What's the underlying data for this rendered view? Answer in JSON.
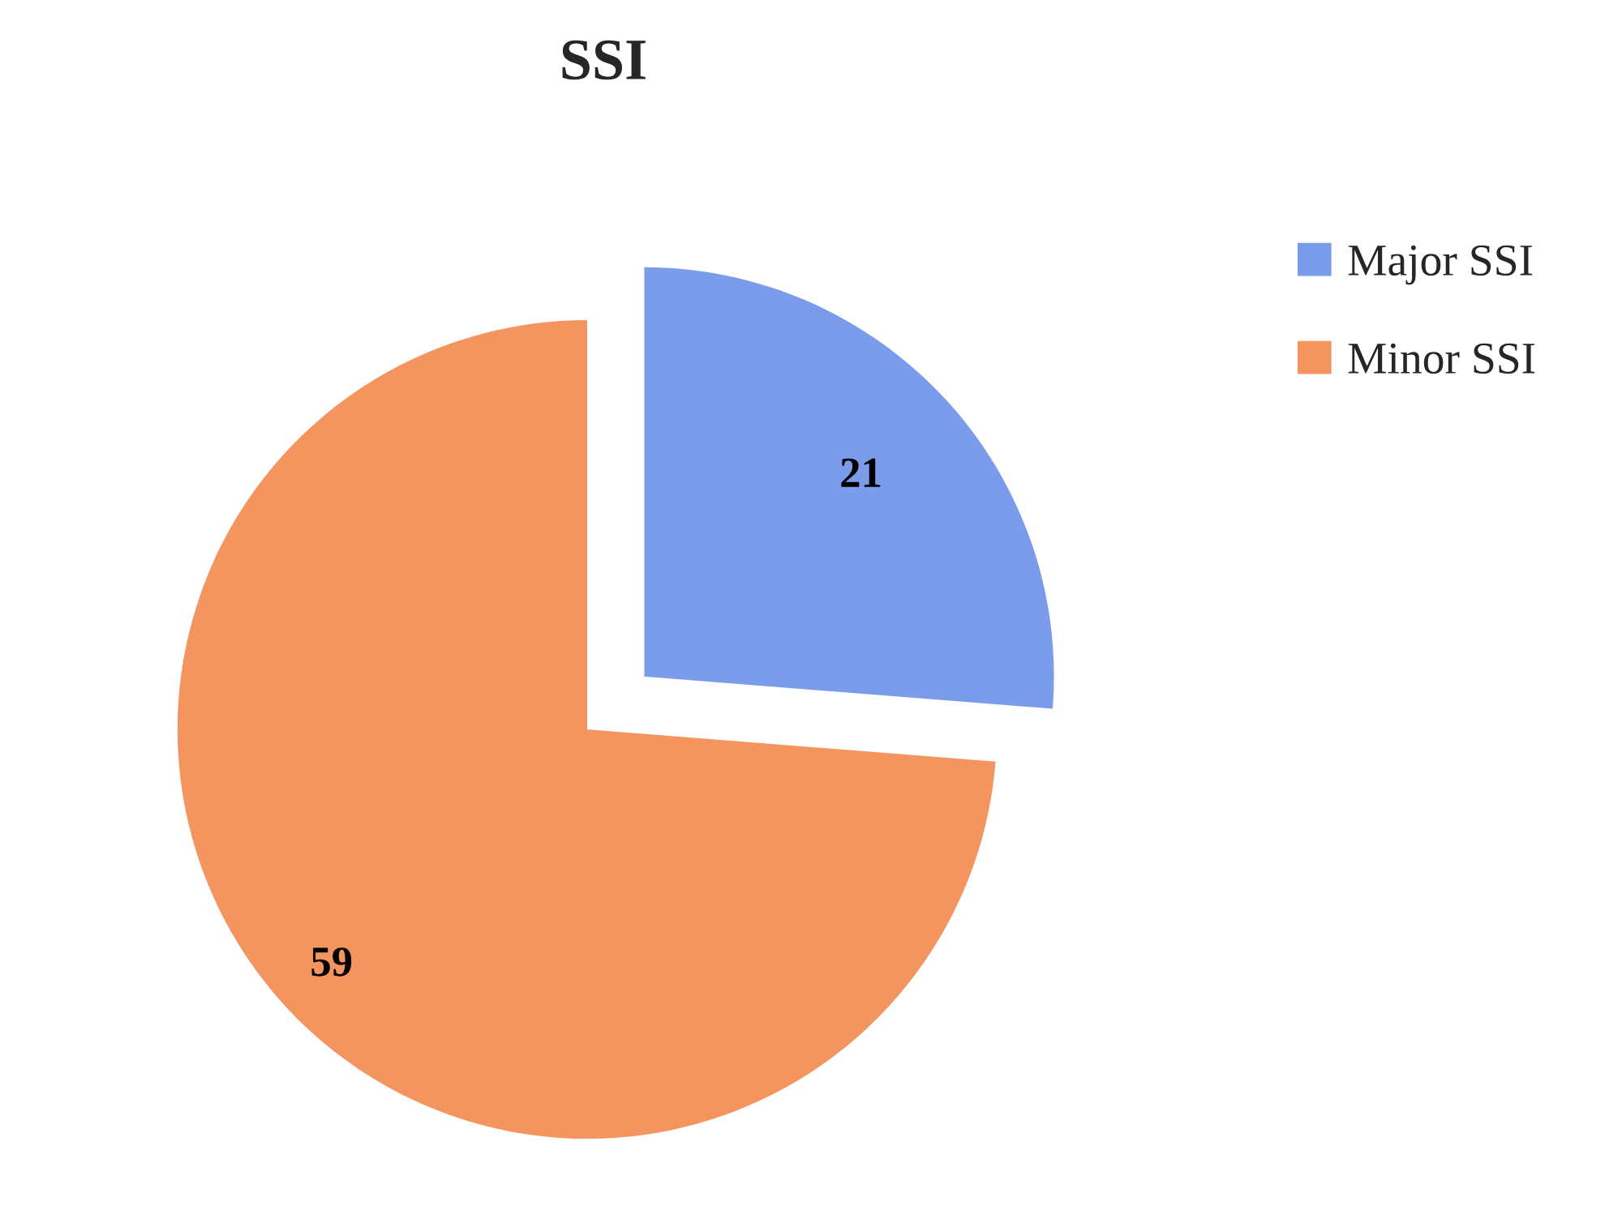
{
  "chart_data": {
    "type": "pie",
    "title": "SSI",
    "categories": [
      "Major SSI",
      "Minor SSI"
    ],
    "values": [
      21,
      59
    ],
    "colors": [
      "#7a9ceb",
      "#f4945e"
    ],
    "data_labels": true,
    "legend": "top right"
  }
}
